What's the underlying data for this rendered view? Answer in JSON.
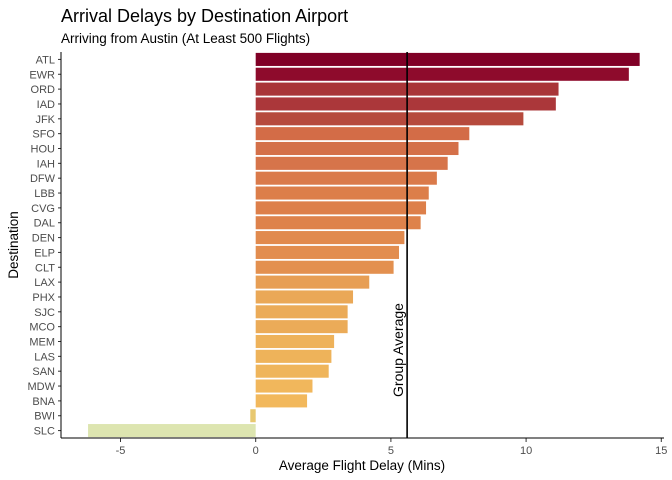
{
  "chart_data": {
    "type": "bar",
    "orientation": "horizontal",
    "title": "Arrival Delays by Destination Airport",
    "subtitle": "Arriving from Austin (At Least 500 Flights)",
    "xlabel": "Average Flight Delay (Mins)",
    "ylabel": "Destination",
    "xlim": [
      -7.2,
      15.1
    ],
    "xticks": [
      -5,
      0,
      5,
      10,
      15
    ],
    "grid": false,
    "legend": "none",
    "categories": [
      "ATL",
      "EWR",
      "ORD",
      "IAD",
      "JFK",
      "SFO",
      "HOU",
      "IAH",
      "DFW",
      "LBB",
      "CVG",
      "DAL",
      "DEN",
      "ELP",
      "CLT",
      "LAX",
      "PHX",
      "SJC",
      "MCO",
      "MEM",
      "LAS",
      "SAN",
      "MDW",
      "BNA",
      "BWI",
      "SLC"
    ],
    "values": [
      14.2,
      13.8,
      11.2,
      11.1,
      9.9,
      7.9,
      7.5,
      7.1,
      6.7,
      6.4,
      6.3,
      6.1,
      5.5,
      5.3,
      5.1,
      4.2,
      3.6,
      3.4,
      3.4,
      2.9,
      2.8,
      2.7,
      2.1,
      1.9,
      -0.2,
      -6.2
    ],
    "colors": [
      "#800026",
      "#8e0b2c",
      "#a93538",
      "#ab373a",
      "#b64a3d",
      "#d36c47",
      "#d47049",
      "#d6744a",
      "#da7a4a",
      "#dc7e4a",
      "#dd7f4a",
      "#de824b",
      "#e18a4e",
      "#e28d4f",
      "#e3904f",
      "#e79e54",
      "#eaa857",
      "#ebab58",
      "#ebab58",
      "#eeb25a",
      "#eeb35a",
      "#efb55b",
      "#f1b75c",
      "#f2b85c",
      "#e8c870",
      "#dde5b0"
    ],
    "reference_line": {
      "value": 5.6,
      "label": "Group Average",
      "color": "#000000"
    }
  }
}
